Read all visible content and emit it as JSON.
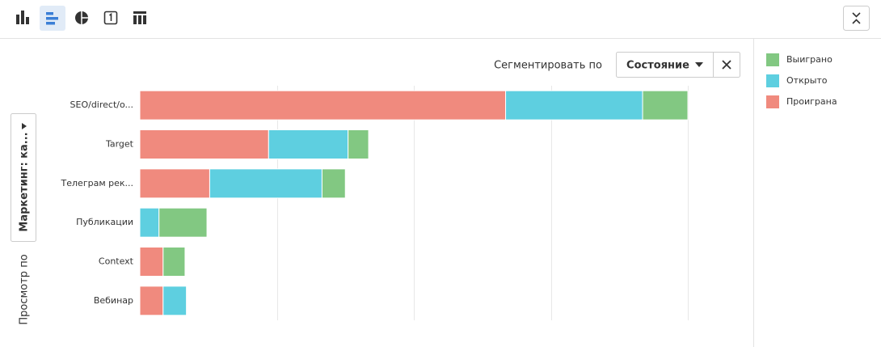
{
  "chart_data": {
    "type": "stacked-barh",
    "categories": [
      "SEO/direct/o...",
      "Target",
      "Телеграм рек...",
      "Публикации",
      "Context",
      "Вебинар"
    ],
    "series": [
      {
        "name": "Проиграна",
        "color": "#f08a7e",
        "values": [
          2.67,
          0.94,
          0.51,
          null,
          0.17,
          0.17
        ]
      },
      {
        "name": "Открыто",
        "color": "#5ecfe0",
        "values": [
          1.0,
          0.58,
          0.82,
          0.14,
          null,
          0.17
        ]
      },
      {
        "name": "Выиграно",
        "color": "#82c882",
        "values": [
          0.33,
          0.15,
          0.17,
          0.35,
          0.16,
          null
        ]
      }
    ],
    "xlim": [
      0,
      4
    ],
    "grid_values": [
      1,
      2,
      3,
      4
    ],
    "legend": "right"
  },
  "controls": {
    "segment_label": "Сегментировать по",
    "segment_value": "Состояние",
    "view_value": "Маркетинг: ка...",
    "view_label": "Просмотр по"
  }
}
